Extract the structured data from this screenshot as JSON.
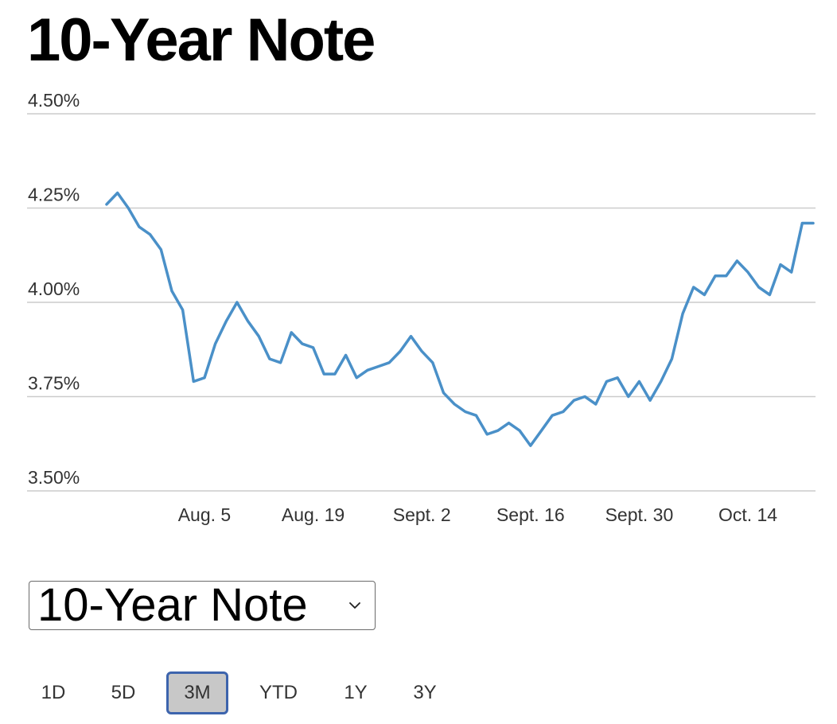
{
  "title": "10-Year Note",
  "selector": {
    "value": "10-Year Note"
  },
  "range_tabs": [
    {
      "label": "1D",
      "active": false
    },
    {
      "label": "5D",
      "active": false
    },
    {
      "label": "3M",
      "active": true
    },
    {
      "label": "YTD",
      "active": false
    },
    {
      "label": "1Y",
      "active": false
    },
    {
      "label": "3Y",
      "active": false
    }
  ],
  "colors": {
    "line": "#4a90c8",
    "grid": "#cccccc",
    "active_tab_border": "#3d64ad",
    "active_tab_fill": "#c8c8c8"
  },
  "chart_data": {
    "type": "line",
    "title": "",
    "xlabel": "",
    "ylabel": "",
    "ylim": [
      3.5,
      4.5
    ],
    "y_ticks": [
      4.5,
      4.25,
      4.0,
      3.75,
      3.5
    ],
    "y_tick_labels": [
      "4.50%",
      "4.25%",
      "4.00%",
      "3.75%",
      "3.50%"
    ],
    "x_tick_labels": [
      "Aug. 5",
      "Aug. 19",
      "Sept. 2",
      "Sept. 16",
      "Sept. 30",
      "Oct. 14"
    ],
    "x_tick_index": [
      9,
      19,
      29,
      39,
      49,
      59
    ],
    "grid": "horizontal",
    "legend": "none",
    "series": [
      {
        "values": [
          4.26,
          4.29,
          4.25,
          4.2,
          4.18,
          4.14,
          4.03,
          3.98,
          3.79,
          3.8,
          3.89,
          3.95,
          4.0,
          3.95,
          3.91,
          3.85,
          3.84,
          3.92,
          3.89,
          3.88,
          3.81,
          3.81,
          3.86,
          3.8,
          3.82,
          3.83,
          3.84,
          3.87,
          3.91,
          3.87,
          3.84,
          3.76,
          3.73,
          3.71,
          3.7,
          3.65,
          3.66,
          3.68,
          3.66,
          3.62,
          3.66,
          3.7,
          3.71,
          3.74,
          3.75,
          3.73,
          3.79,
          3.8,
          3.75,
          3.79,
          3.74,
          3.79,
          3.85,
          3.97,
          4.04,
          4.02,
          4.07,
          4.07,
          4.11,
          4.08,
          4.04,
          4.02,
          4.1,
          4.08,
          4.21,
          4.21
        ]
      }
    ]
  }
}
